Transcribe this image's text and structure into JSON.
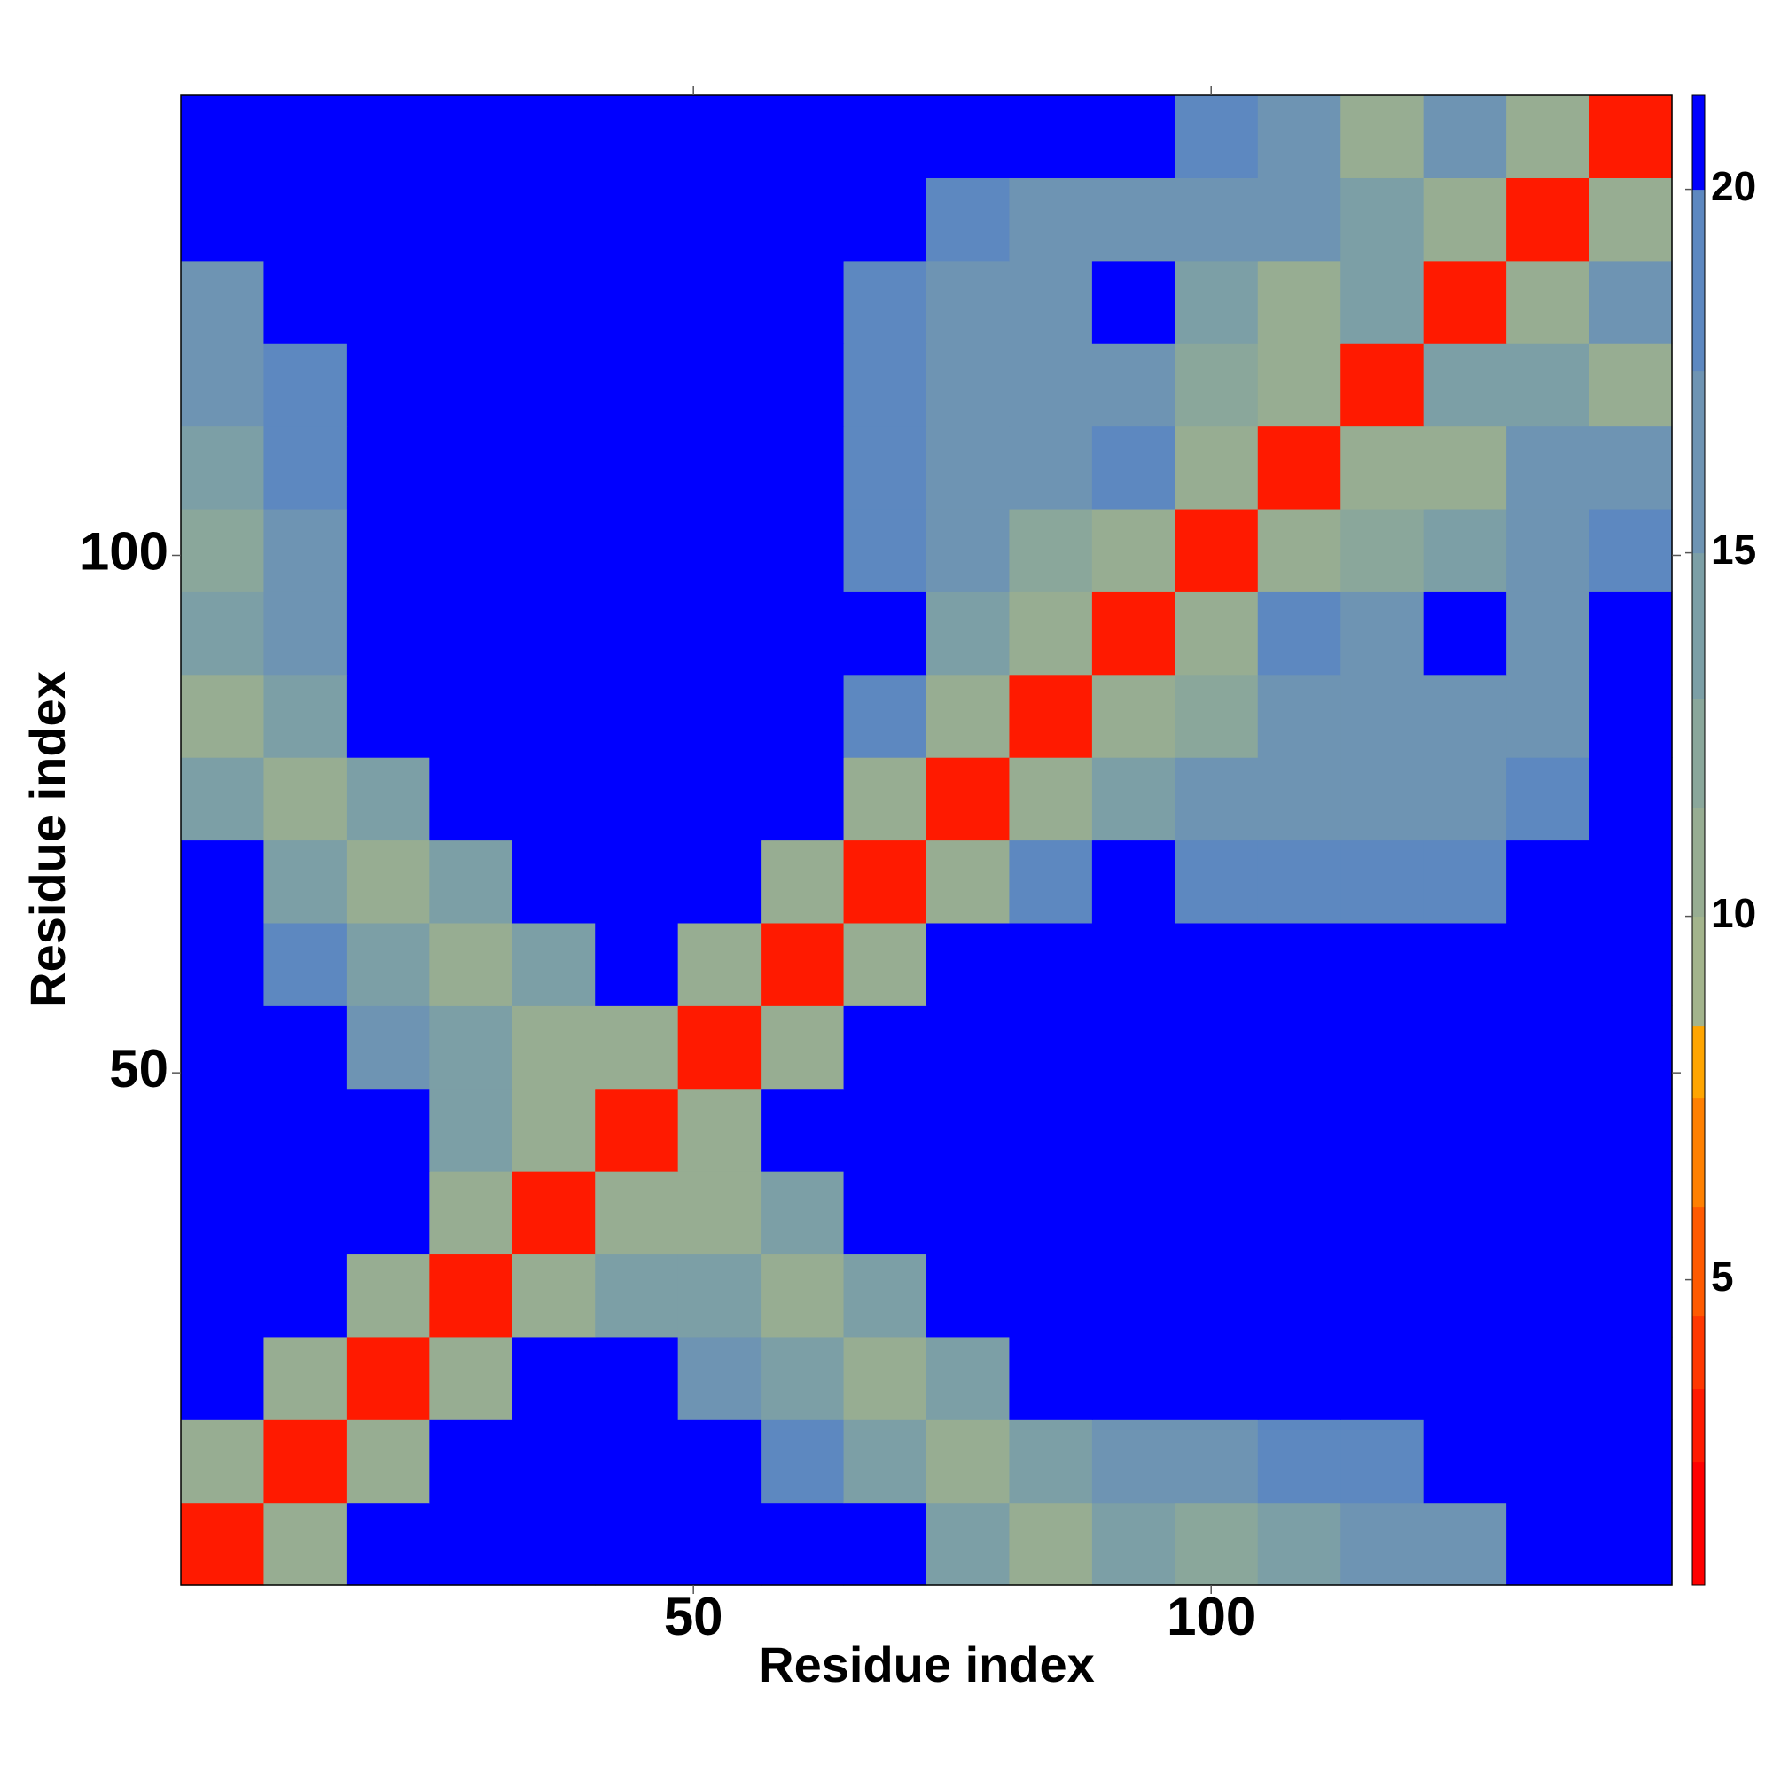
{
  "chart_data": {
    "type": "heatmap",
    "xlabel": "Residue index",
    "ylabel": "Residue index",
    "xlim": [
      0.5,
      144.5
    ],
    "ylim": [
      0.5,
      144.5
    ],
    "xticks": [
      50,
      100
    ],
    "yticks": [
      50,
      100
    ],
    "z": [
      [
        3,
        10,
        21,
        21,
        21,
        21,
        21,
        21,
        21,
        13,
        11,
        13,
        12,
        14,
        16,
        17,
        21,
        21
      ],
      [
        10,
        3,
        10,
        21,
        21,
        21,
        21,
        19,
        13,
        11,
        13,
        16,
        16,
        18,
        19,
        21,
        21,
        21
      ],
      [
        21,
        10,
        3,
        10,
        21,
        21,
        17,
        13,
        11,
        13,
        21,
        21,
        21,
        21,
        21,
        21,
        21,
        21
      ],
      [
        21,
        21,
        10,
        3,
        10,
        14,
        13,
        11,
        13,
        21,
        21,
        21,
        21,
        21,
        21,
        21,
        21,
        21
      ],
      [
        21,
        21,
        21,
        10,
        3,
        10,
        11,
        13,
        21,
        21,
        21,
        21,
        21,
        21,
        21,
        21,
        21,
        21
      ],
      [
        21,
        21,
        21,
        14,
        10,
        3,
        10,
        21,
        21,
        21,
        21,
        21,
        21,
        21,
        21,
        21,
        21,
        21
      ],
      [
        21,
        21,
        17,
        13,
        11,
        10,
        3,
        10,
        21,
        21,
        21,
        21,
        21,
        21,
        21,
        21,
        21,
        21
      ],
      [
        21,
        19,
        13,
        11,
        13,
        21,
        10,
        3,
        10,
        21,
        21,
        21,
        21,
        21,
        21,
        21,
        21,
        21
      ],
      [
        21,
        13,
        11,
        13,
        21,
        21,
        21,
        10,
        3,
        10,
        19,
        21,
        18,
        18,
        18,
        19,
        21,
        21
      ],
      [
        13,
        11,
        13,
        21,
        21,
        21,
        21,
        21,
        10,
        3,
        10,
        14,
        15,
        15,
        17,
        16,
        18,
        21
      ],
      [
        11,
        13,
        21,
        21,
        21,
        21,
        21,
        21,
        19,
        10,
        3,
        10,
        12,
        15,
        16,
        15,
        16,
        21
      ],
      [
        13,
        16,
        21,
        21,
        21,
        21,
        21,
        21,
        21,
        14,
        10,
        3,
        10,
        18,
        17,
        21,
        17,
        21
      ],
      [
        12,
        16,
        21,
        21,
        21,
        21,
        21,
        21,
        18,
        15,
        12,
        10,
        3,
        10,
        12,
        14,
        15,
        19
      ],
      [
        14,
        18,
        21,
        21,
        21,
        21,
        21,
        21,
        18,
        15,
        15,
        18,
        10,
        3,
        10,
        11,
        15,
        17
      ],
      [
        16,
        19,
        21,
        21,
        21,
        21,
        21,
        21,
        18,
        17,
        16,
        17,
        12,
        10,
        3,
        13,
        14,
        11
      ],
      [
        17,
        21,
        21,
        21,
        21,
        21,
        21,
        21,
        19,
        16,
        15,
        21,
        14,
        11,
        13,
        3,
        10,
        15
      ],
      [
        21,
        21,
        21,
        21,
        21,
        21,
        21,
        21,
        21,
        18,
        16,
        17,
        15,
        15,
        14,
        10,
        3,
        10
      ],
      [
        21,
        21,
        21,
        21,
        21,
        21,
        21,
        21,
        21,
        21,
        21,
        21,
        19,
        17,
        11,
        15,
        10,
        3
      ]
    ],
    "colorbar": {
      "levels": [
        0.8,
        2.5,
        3.5,
        4.5,
        6,
        7.5,
        8.5,
        10,
        11.5,
        13,
        15,
        17.5,
        20,
        21.3
      ],
      "colors": [
        "#ff0000",
        "#ff1a00",
        "#ff3800",
        "#ff5a00",
        "#ff8000",
        "#ffa500",
        "#a3b48c",
        "#97ad92",
        "#8aa79b",
        "#7c9fa6",
        "#6e94b3",
        "#5d88c0",
        "#0000ff"
      ],
      "ticks": [
        5,
        10,
        15,
        20
      ]
    }
  }
}
